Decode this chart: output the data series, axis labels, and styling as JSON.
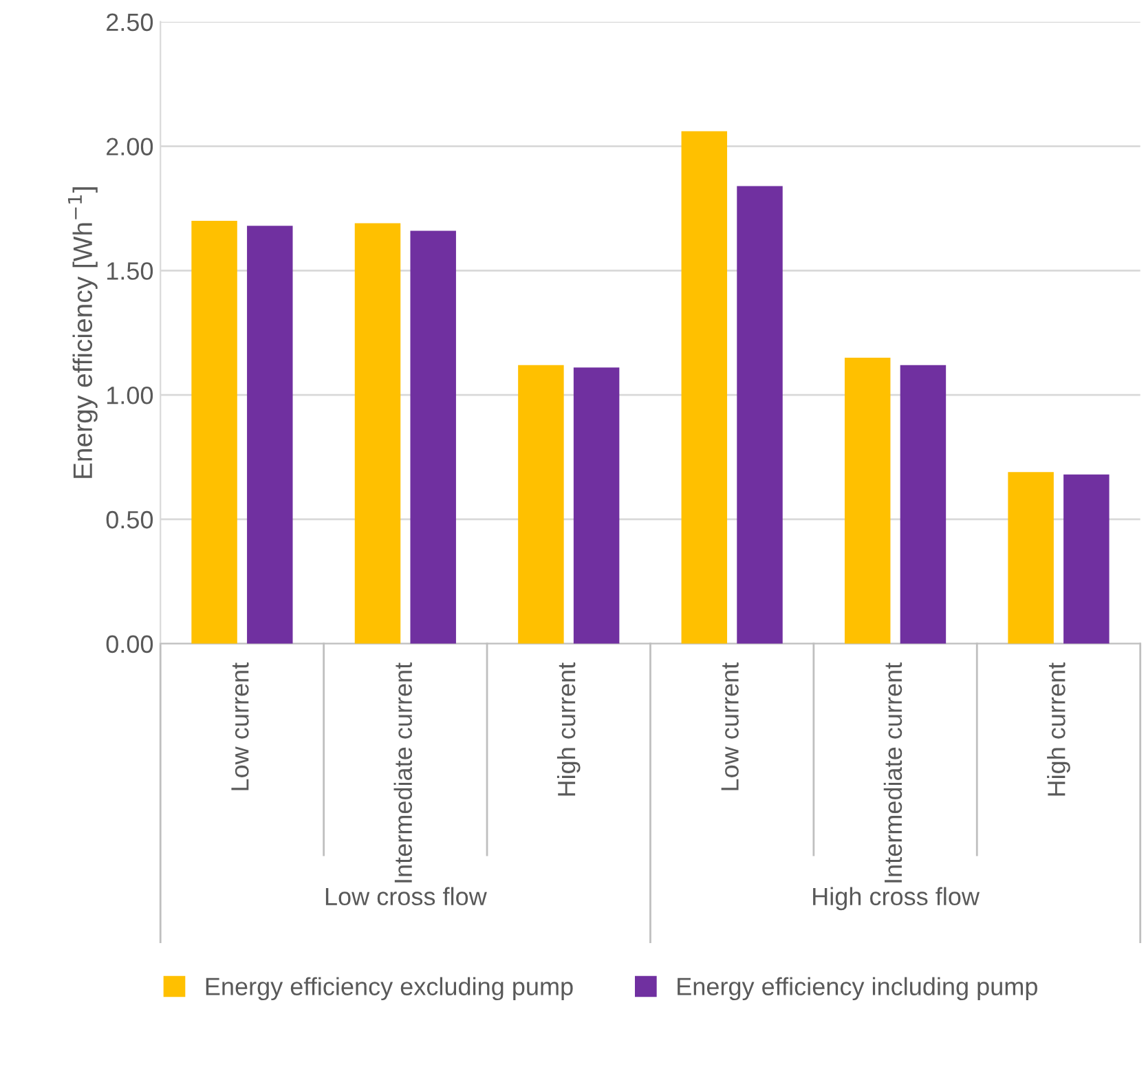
{
  "chart_data": {
    "type": "bar",
    "ylabel": "Energy efficiency [Wh$^{−1}$]",
    "categories": [
      "Low current",
      "Intermediate current",
      "High current",
      "Low current",
      "Intermediate current",
      "High current"
    ],
    "series": [
      {
        "name": "Energy efficiency excluding pump",
        "color": "#ffc000",
        "values": [
          1.7,
          1.69,
          1.12,
          2.06,
          1.15,
          0.69
        ]
      },
      {
        "name": "Energy efficiency including pump",
        "color": "#7030a0",
        "values": [
          1.68,
          1.66,
          1.11,
          1.84,
          1.12,
          0.68
        ]
      }
    ],
    "annotations": [
      "Low cross flow",
      "High cross flow"
    ],
    "ylim": [
      0,
      2.5
    ],
    "yticks": [
      {
        "value": 0,
        "label": "0.00"
      },
      {
        "value": 0.5,
        "label": "0.50"
      },
      {
        "value": 1,
        "label": "1.00"
      },
      {
        "value": 1.5,
        "label": "1.50"
      },
      {
        "value": 2,
        "label": "2.00"
      },
      {
        "value": 2.5,
        "label": "2.50"
      }
    ],
    "grid": "y",
    "legend": "bottom"
  }
}
